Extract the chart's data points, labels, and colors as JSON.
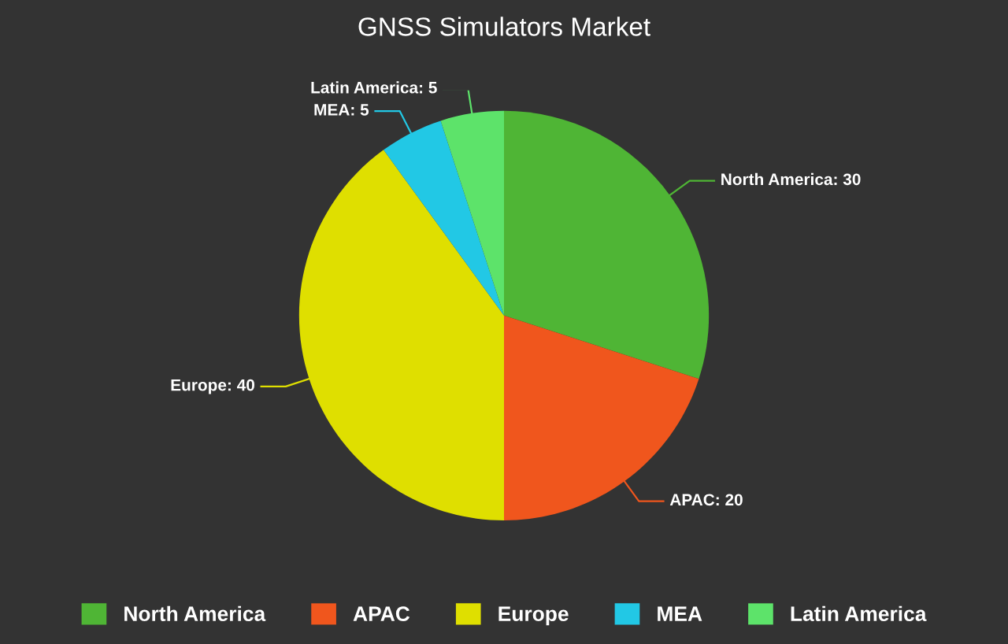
{
  "chart_data": {
    "type": "pie",
    "title": "GNSS Simulators Market",
    "categories": [
      "North America",
      "APAC",
      "Europe",
      "MEA",
      "Latin America"
    ],
    "values": [
      30,
      20,
      40,
      5,
      5
    ],
    "value_labels": [
      "North America: 30",
      "APAC: 20",
      "Europe: 40",
      "MEA: 5",
      "Latin America: 5"
    ],
    "colors": [
      "#4fb535",
      "#f0561d",
      "#dfdf00",
      "#22c8e5",
      "#5de36a"
    ],
    "legend": "bottom"
  }
}
